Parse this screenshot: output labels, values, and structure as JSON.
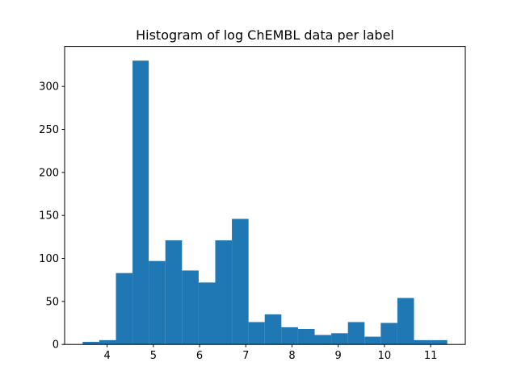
{
  "chart_data": {
    "type": "histogram",
    "title": "Histogram of log ChEMBL data per label",
    "bins": [
      3.47,
      3.83,
      4.19,
      4.55,
      4.9,
      5.26,
      5.62,
      5.98,
      6.34,
      6.7,
      7.06,
      7.41,
      7.77,
      8.13,
      8.49,
      8.85,
      9.21,
      9.57,
      9.92,
      10.28,
      10.64,
      11.0,
      11.36
    ],
    "values": [
      3,
      5,
      83,
      330,
      97,
      121,
      86,
      72,
      121,
      146,
      26,
      35,
      20,
      18,
      11,
      13,
      26,
      9,
      25,
      54,
      5,
      5
    ],
    "color": "#1f77b4",
    "xlim": [
      3.08,
      11.75
    ],
    "xticks": [
      4,
      5,
      6,
      7,
      8,
      9,
      10,
      11
    ],
    "ylim": [
      0,
      346.5
    ],
    "yticks": [
      0,
      50,
      100,
      150,
      200,
      250,
      300
    ],
    "grid": false
  }
}
